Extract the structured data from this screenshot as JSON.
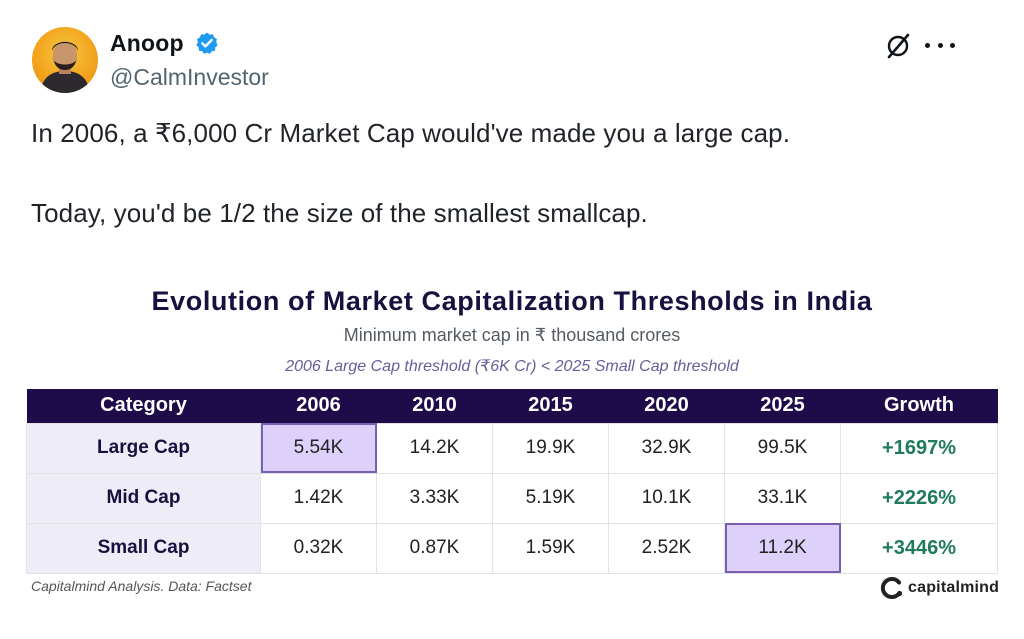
{
  "author": {
    "name": "Anoop",
    "handle": "@CalmInvestor",
    "verified": true,
    "avatar_icon": "profile-avatar",
    "verified_color": "#1d9bf0"
  },
  "header_icons": [
    "grok-icon",
    "more-options-icon"
  ],
  "tweet": {
    "line1": "In 2006, a ₹6,000 Cr Market Cap would've made you a large cap.",
    "line2": "Today, you'd be 1/2 the size of the smallest smallcap."
  },
  "chart": {
    "title": "Evolution of Market Capitalization Thresholds in India",
    "subtitle": "Minimum market cap in ₹ thousand crores",
    "note": "2006 Large Cap threshold (₹6K Cr) < 2025 Small Cap threshold",
    "source": "Capitalmind Analysis. Data: Factset",
    "brand": "capitalmind",
    "colors": {
      "header": "#1d0b4a",
      "highlight": "#ddd0fb",
      "growth": "#1f7a5e",
      "title": "#1a1040"
    }
  },
  "chart_data": {
    "type": "table",
    "columns": [
      "Category",
      "2006",
      "2010",
      "2015",
      "2020",
      "2025",
      "Growth"
    ],
    "rows": [
      {
        "category": "Large Cap",
        "values": [
          "5.54K",
          "14.2K",
          "19.9K",
          "32.9K",
          "99.5K"
        ],
        "growth": "+1697%",
        "highlight": "2006"
      },
      {
        "category": "Mid Cap",
        "values": [
          "1.42K",
          "3.33K",
          "5.19K",
          "10.1K",
          "33.1K"
        ],
        "growth": "+2226%",
        "highlight": ""
      },
      {
        "category": "Small Cap",
        "values": [
          "0.32K",
          "0.87K",
          "1.59K",
          "2.52K",
          "11.2K"
        ],
        "growth": "+3446%",
        "highlight": "2025"
      }
    ]
  }
}
